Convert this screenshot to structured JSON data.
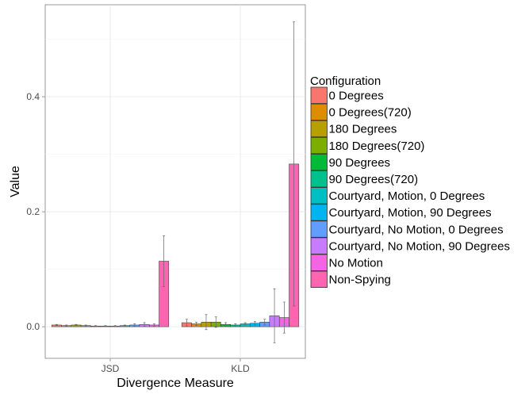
{
  "chart_data": {
    "type": "bar",
    "title": "",
    "xlabel": "Divergence Measure",
    "ylabel": "Value",
    "categories": [
      "JSD",
      "KLD"
    ],
    "ylim": [
      -0.055,
      0.56
    ],
    "yticks": [
      0.0,
      0.2,
      0.4
    ],
    "ytick_labels": [
      "0.0",
      "0.2",
      "0.4"
    ],
    "grid": true,
    "error_bars": true,
    "legend": {
      "title": "Configuration",
      "position": "right"
    },
    "series": [
      {
        "name": "0 Degrees",
        "color": "#F8766D",
        "values": [
          0.003,
          0.007
        ],
        "errors": [
          0.001,
          0.006
        ]
      },
      {
        "name": "0 Degrees(720)",
        "color": "#DE8C00",
        "values": [
          0.002,
          0.005
        ],
        "errors": [
          0.001,
          0.003
        ]
      },
      {
        "name": "180 Degrees",
        "color": "#B79F00",
        "values": [
          0.003,
          0.008
        ],
        "errors": [
          0.001,
          0.013
        ]
      },
      {
        "name": "180 Degrees(720)",
        "color": "#7CAE00",
        "values": [
          0.002,
          0.008
        ],
        "errors": [
          0.001,
          0.009
        ]
      },
      {
        "name": "90 Degrees",
        "color": "#00BA38",
        "values": [
          0.001,
          0.004
        ],
        "errors": [
          0.001,
          0.003
        ]
      },
      {
        "name": "90 Degrees(720)",
        "color": "#00C08B",
        "values": [
          0.001,
          0.003
        ],
        "errors": [
          0.001,
          0.002
        ]
      },
      {
        "name": "Courtyard, Motion, 0 Degrees",
        "color": "#00BFC4",
        "values": [
          0.001,
          0.005
        ],
        "errors": [
          0.001,
          0.002
        ]
      },
      {
        "name": "Courtyard, Motion, 90 Degrees",
        "color": "#00B4F0",
        "values": [
          0.002,
          0.006
        ],
        "errors": [
          0.001,
          0.003
        ]
      },
      {
        "name": "Courtyard, No Motion, 0 Degrees",
        "color": "#619CFF",
        "values": [
          0.003,
          0.008
        ],
        "errors": [
          0.002,
          0.005
        ]
      },
      {
        "name": "Courtyard, No Motion, 90 Degrees",
        "color": "#C77CFF",
        "values": [
          0.004,
          0.019
        ],
        "errors": [
          0.003,
          0.047
        ]
      },
      {
        "name": "No Motion",
        "color": "#F564E3",
        "values": [
          0.003,
          0.016
        ],
        "errors": [
          0.002,
          0.027
        ]
      },
      {
        "name": "Non-Spying",
        "color": "#FF64B0",
        "values": [
          0.114,
          0.283
        ],
        "errors": [
          0.044,
          0.247
        ]
      }
    ]
  }
}
